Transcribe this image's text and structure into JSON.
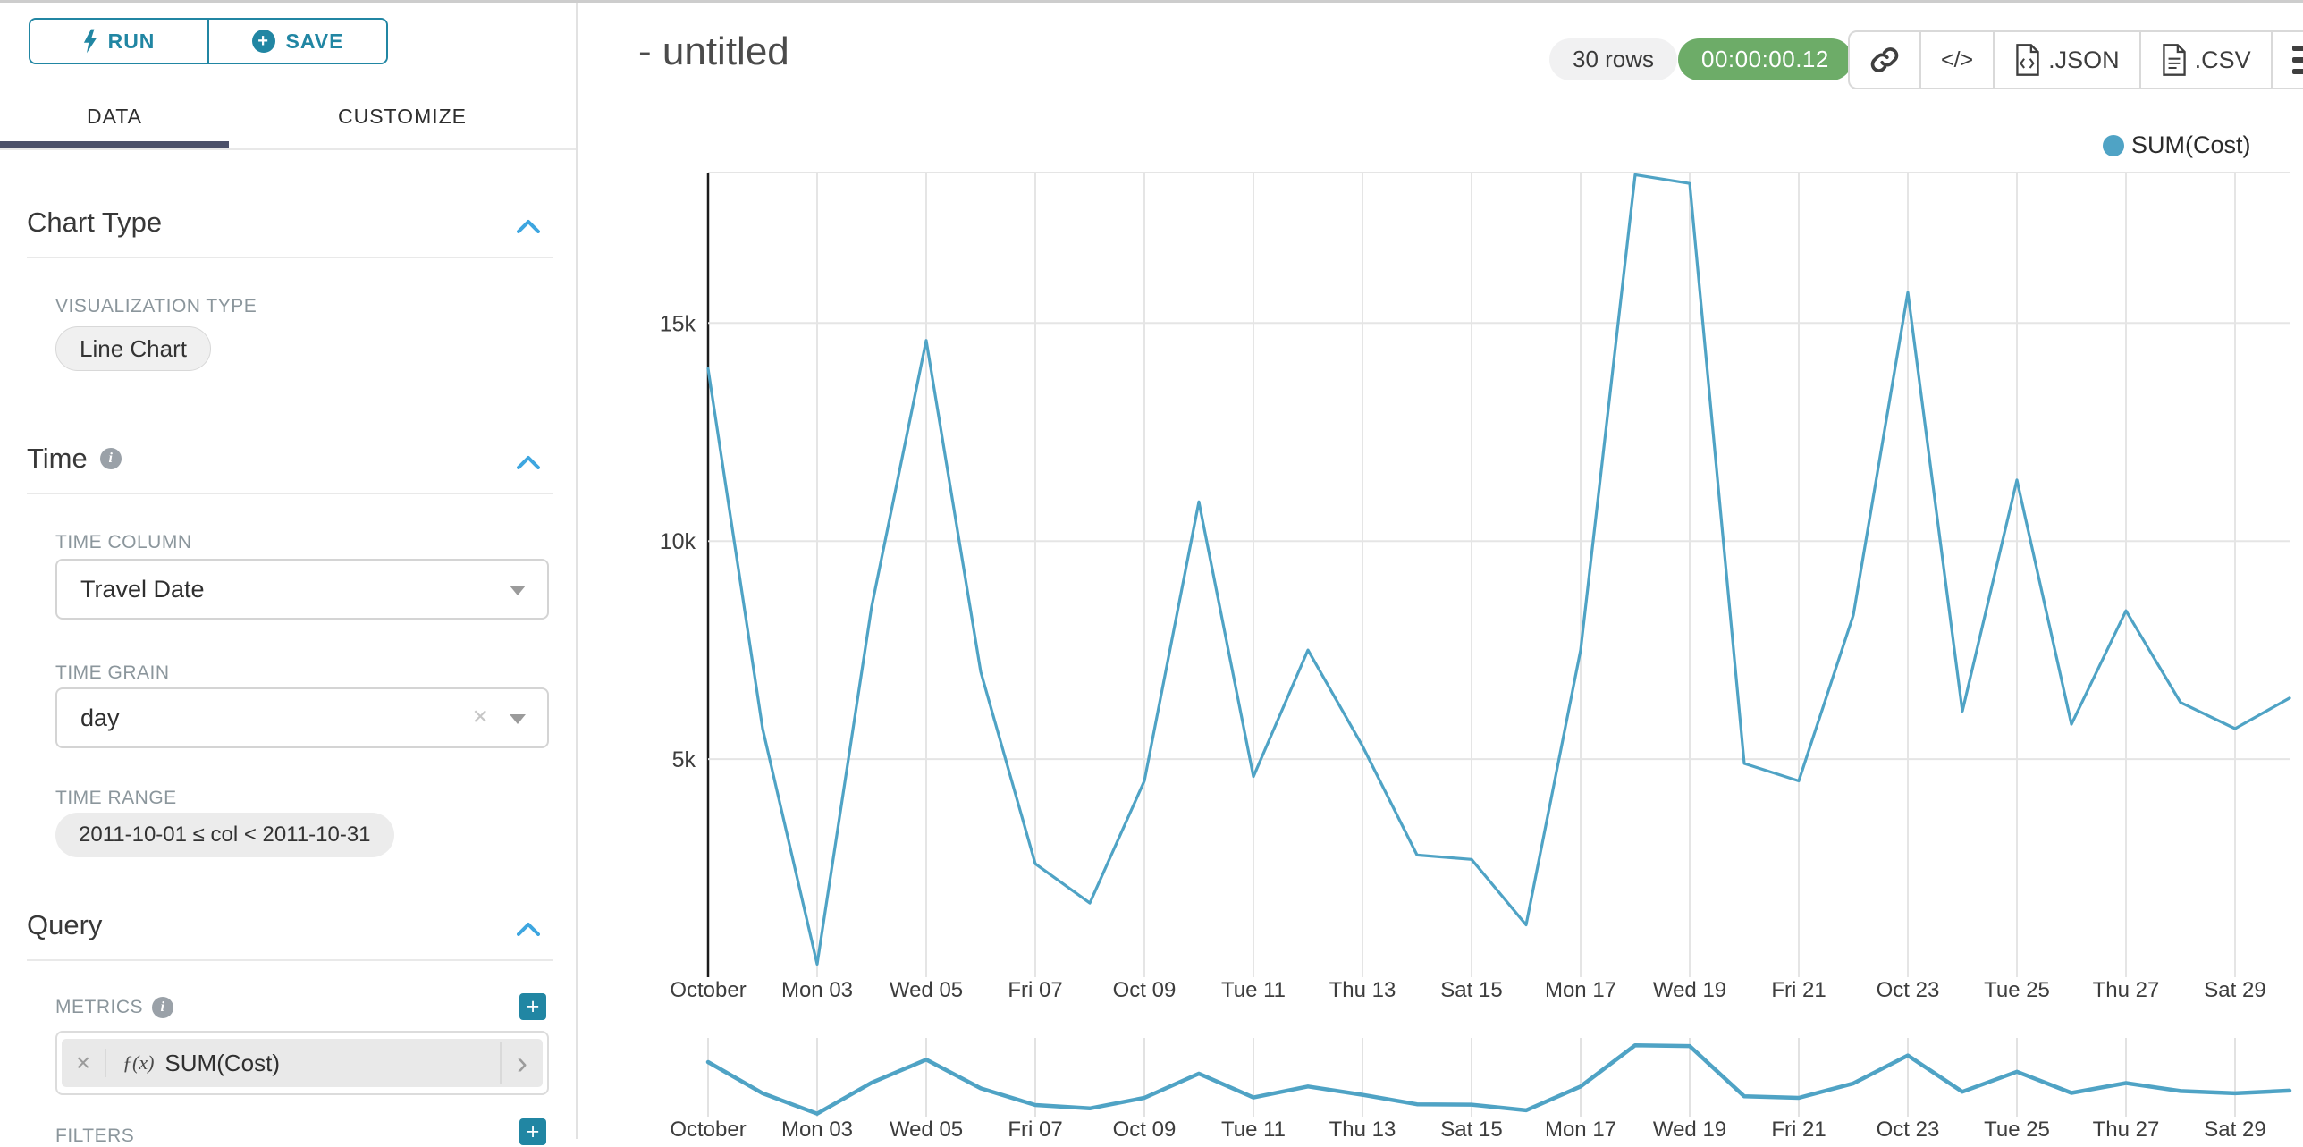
{
  "toolbar": {
    "run": "RUN",
    "save": "SAVE"
  },
  "tabs": {
    "data": "DATA",
    "customize": "CUSTOMIZE"
  },
  "panels": {
    "chart_type": {
      "title": "Chart Type",
      "viz_label": "VISUALIZATION TYPE",
      "viz_value": "Line Chart"
    },
    "time": {
      "title": "Time",
      "time_column_label": "TIME COLUMN",
      "time_column_value": "Travel Date",
      "time_grain_label": "TIME GRAIN",
      "time_grain_value": "day",
      "time_range_label": "TIME RANGE",
      "time_range_value": "2011-10-01 ≤ col < 2011-10-31"
    },
    "query": {
      "title": "Query",
      "metrics_label": "METRICS",
      "metric_fx": "ƒ(x)",
      "metric_name": "SUM(Cost)",
      "filters_label": "FILTERS"
    }
  },
  "header": {
    "title": "- untitled",
    "row_count": "30 rows",
    "timer": "00:00:00.12",
    "code_label": "</>",
    "json_label": ".JSON",
    "csv_label": ".CSV"
  },
  "colors": {
    "accent": "#2186a3",
    "line": "#4fa3c5",
    "timer_green": "#6dac68",
    "chevron_blue": "#3ea6e0",
    "tab_underline": "#4b5069",
    "gridline": "#e5e5e5",
    "axis_line": "#1c1c1c"
  },
  "chart_data": {
    "type": "line",
    "legend_position": "top-right",
    "grid": true,
    "has_mini_preview": true,
    "ylim": [
      0,
      18450
    ],
    "y_ticks": [
      {
        "label": "5k",
        "value": 5000
      },
      {
        "label": "10k",
        "value": 10000
      },
      {
        "label": "15k",
        "value": 15000
      }
    ],
    "x_ticks": [
      {
        "label": "October",
        "day": 1
      },
      {
        "label": "Mon 03",
        "day": 3
      },
      {
        "label": "Wed 05",
        "day": 5
      },
      {
        "label": "Fri 07",
        "day": 7
      },
      {
        "label": "Oct 09",
        "day": 9
      },
      {
        "label": "Tue 11",
        "day": 11
      },
      {
        "label": "Thu 13",
        "day": 13
      },
      {
        "label": "Sat 15",
        "day": 15
      },
      {
        "label": "Mon 17",
        "day": 17
      },
      {
        "label": "Wed 19",
        "day": 19
      },
      {
        "label": "Fri 21",
        "day": 21
      },
      {
        "label": "Oct 23",
        "day": 23
      },
      {
        "label": "Tue 25",
        "day": 25
      },
      {
        "label": "Thu 27",
        "day": 27
      },
      {
        "label": "Sat 29",
        "day": 29
      }
    ],
    "dates": [
      "2011-10-01",
      "2011-10-02",
      "2011-10-03",
      "2011-10-04",
      "2011-10-05",
      "2011-10-06",
      "2011-10-07",
      "2011-10-08",
      "2011-10-09",
      "2011-10-10",
      "2011-10-11",
      "2011-10-12",
      "2011-10-13",
      "2011-10-14",
      "2011-10-15",
      "2011-10-16",
      "2011-10-17",
      "2011-10-18",
      "2011-10-19",
      "2011-10-20",
      "2011-10-21",
      "2011-10-22",
      "2011-10-23",
      "2011-10-24",
      "2011-10-25",
      "2011-10-26",
      "2011-10-27",
      "2011-10-28",
      "2011-10-29",
      "2011-10-30"
    ],
    "series": [
      {
        "name": "SUM(Cost)",
        "color": "#4fa3c5",
        "values": [
          13950,
          5700,
          300,
          8500,
          14600,
          7000,
          2600,
          1700,
          4500,
          10900,
          4600,
          7500,
          5300,
          2800,
          2700,
          1200,
          7500,
          18400,
          18200,
          4900,
          4500,
          8300,
          15700,
          6100,
          11400,
          5800,
          8400,
          6300,
          5700,
          6400
        ]
      }
    ]
  }
}
